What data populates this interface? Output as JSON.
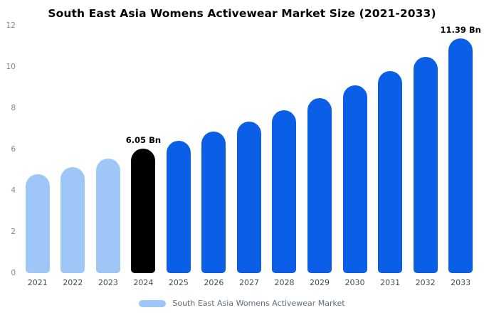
{
  "title": "South East Asia Womens Activewear Market Size (2021-2033)",
  "chart_data": {
    "type": "bar",
    "title": "South East Asia Womens Activewear Market Size (2021-2033)",
    "categories": [
      "2021",
      "2022",
      "2023",
      "2024",
      "2025",
      "2026",
      "2027",
      "2028",
      "2029",
      "2030",
      "2031",
      "2032",
      "2033"
    ],
    "values": [
      4.8,
      5.15,
      5.55,
      6.05,
      6.4,
      6.85,
      7.35,
      7.9,
      8.5,
      9.1,
      9.8,
      10.5,
      11.39
    ],
    "xlabel": "",
    "ylabel": "",
    "ylim": [
      0,
      12
    ],
    "yticks": [
      0,
      2,
      4,
      6,
      8,
      10,
      12
    ],
    "grid": false,
    "bar_colors": [
      "#9ec7f7",
      "#9ec7f7",
      "#9ec7f7",
      "#000000",
      "#0b5fe6",
      "#0b5fe6",
      "#0b5fe6",
      "#0b5fe6",
      "#0b5fe6",
      "#0b5fe6",
      "#0b5fe6",
      "#0b5fe6",
      "#0b5fe6"
    ],
    "annotations": [
      {
        "category": "2024",
        "label": "6.05 Bn"
      },
      {
        "category": "2033",
        "label": "11.39 Bn"
      }
    ],
    "legend_position": "bottom",
    "legend": {
      "label": "South East Asia Womens Activewear Market",
      "color": "#9ec7f7"
    }
  }
}
